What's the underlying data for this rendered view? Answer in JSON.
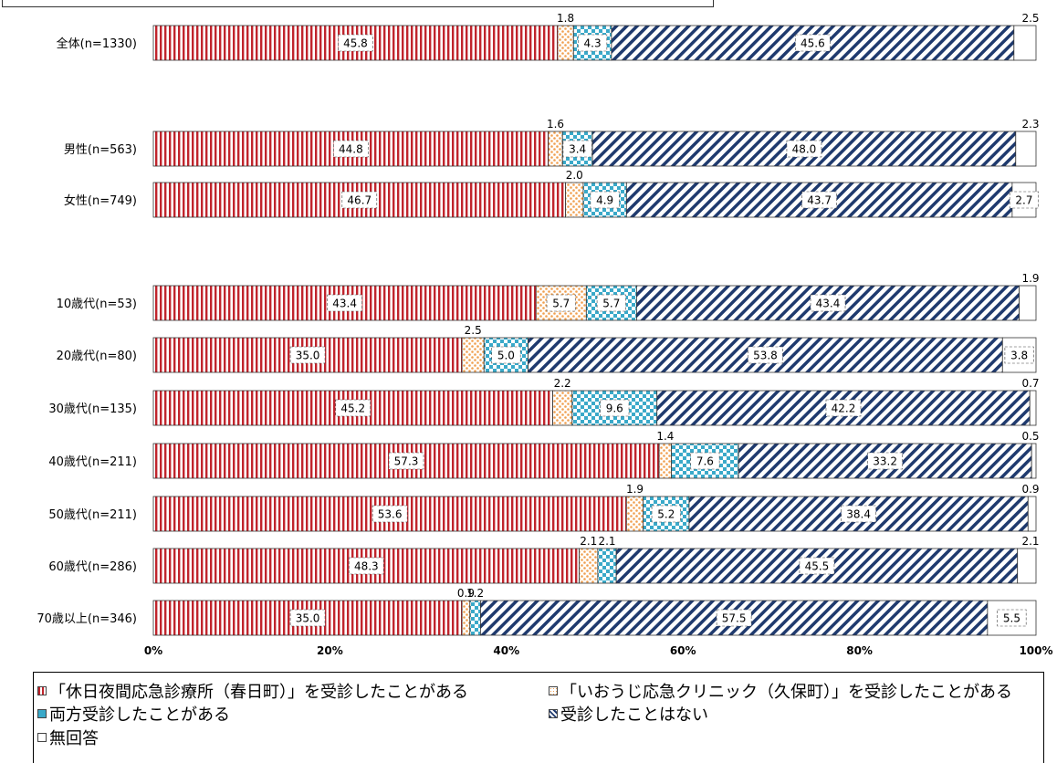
{
  "chart_data": {
    "type": "bar",
    "orientation": "horizontal",
    "stacked": true,
    "title": "",
    "xlabel": "",
    "ylabel": "",
    "xlim": [
      0,
      100
    ],
    "x_ticks": [
      "0%",
      "20%",
      "40%",
      "60%",
      "80%",
      "100%"
    ],
    "categories": [
      "全体(n=1330)",
      "男性(n=563)",
      "女性(n=749)",
      "10歳代(n=53)",
      "20歳代(n=80)",
      "30歳代(n=135)",
      "40歳代(n=211)",
      "50歳代(n=211)",
      "60歳代(n=286)",
      "70歳以上(n=346)"
    ],
    "series": [
      {
        "name": "「休日夜間応急診療所（春日町）」を受診したことがある",
        "color": "#c0242c",
        "values": [
          45.8,
          44.8,
          46.7,
          43.4,
          35.0,
          45.2,
          57.3,
          53.6,
          48.3,
          35.0
        ]
      },
      {
        "name": "「いおうじ応急クリニック（久保町）」を受診したことがある",
        "color": "#f0a050",
        "values": [
          1.8,
          1.6,
          2.0,
          5.7,
          2.5,
          2.2,
          1.4,
          1.9,
          2.1,
          0.9
        ]
      },
      {
        "name": "両方受診したことがある",
        "color": "#3aa9c9",
        "values": [
          4.3,
          3.4,
          4.9,
          5.7,
          5.0,
          9.6,
          7.6,
          5.2,
          2.1,
          1.2
        ]
      },
      {
        "name": "受診したことはない",
        "color": "#1f3a6e",
        "values": [
          45.6,
          48.0,
          43.7,
          43.4,
          53.8,
          42.2,
          33.2,
          38.4,
          45.5,
          57.5
        ]
      },
      {
        "name": "無回答",
        "color": "#ffffff",
        "values": [
          2.5,
          2.3,
          2.7,
          1.9,
          3.8,
          0.7,
          0.5,
          0.9,
          2.1,
          5.5
        ]
      }
    ],
    "legend": "bottom"
  }
}
